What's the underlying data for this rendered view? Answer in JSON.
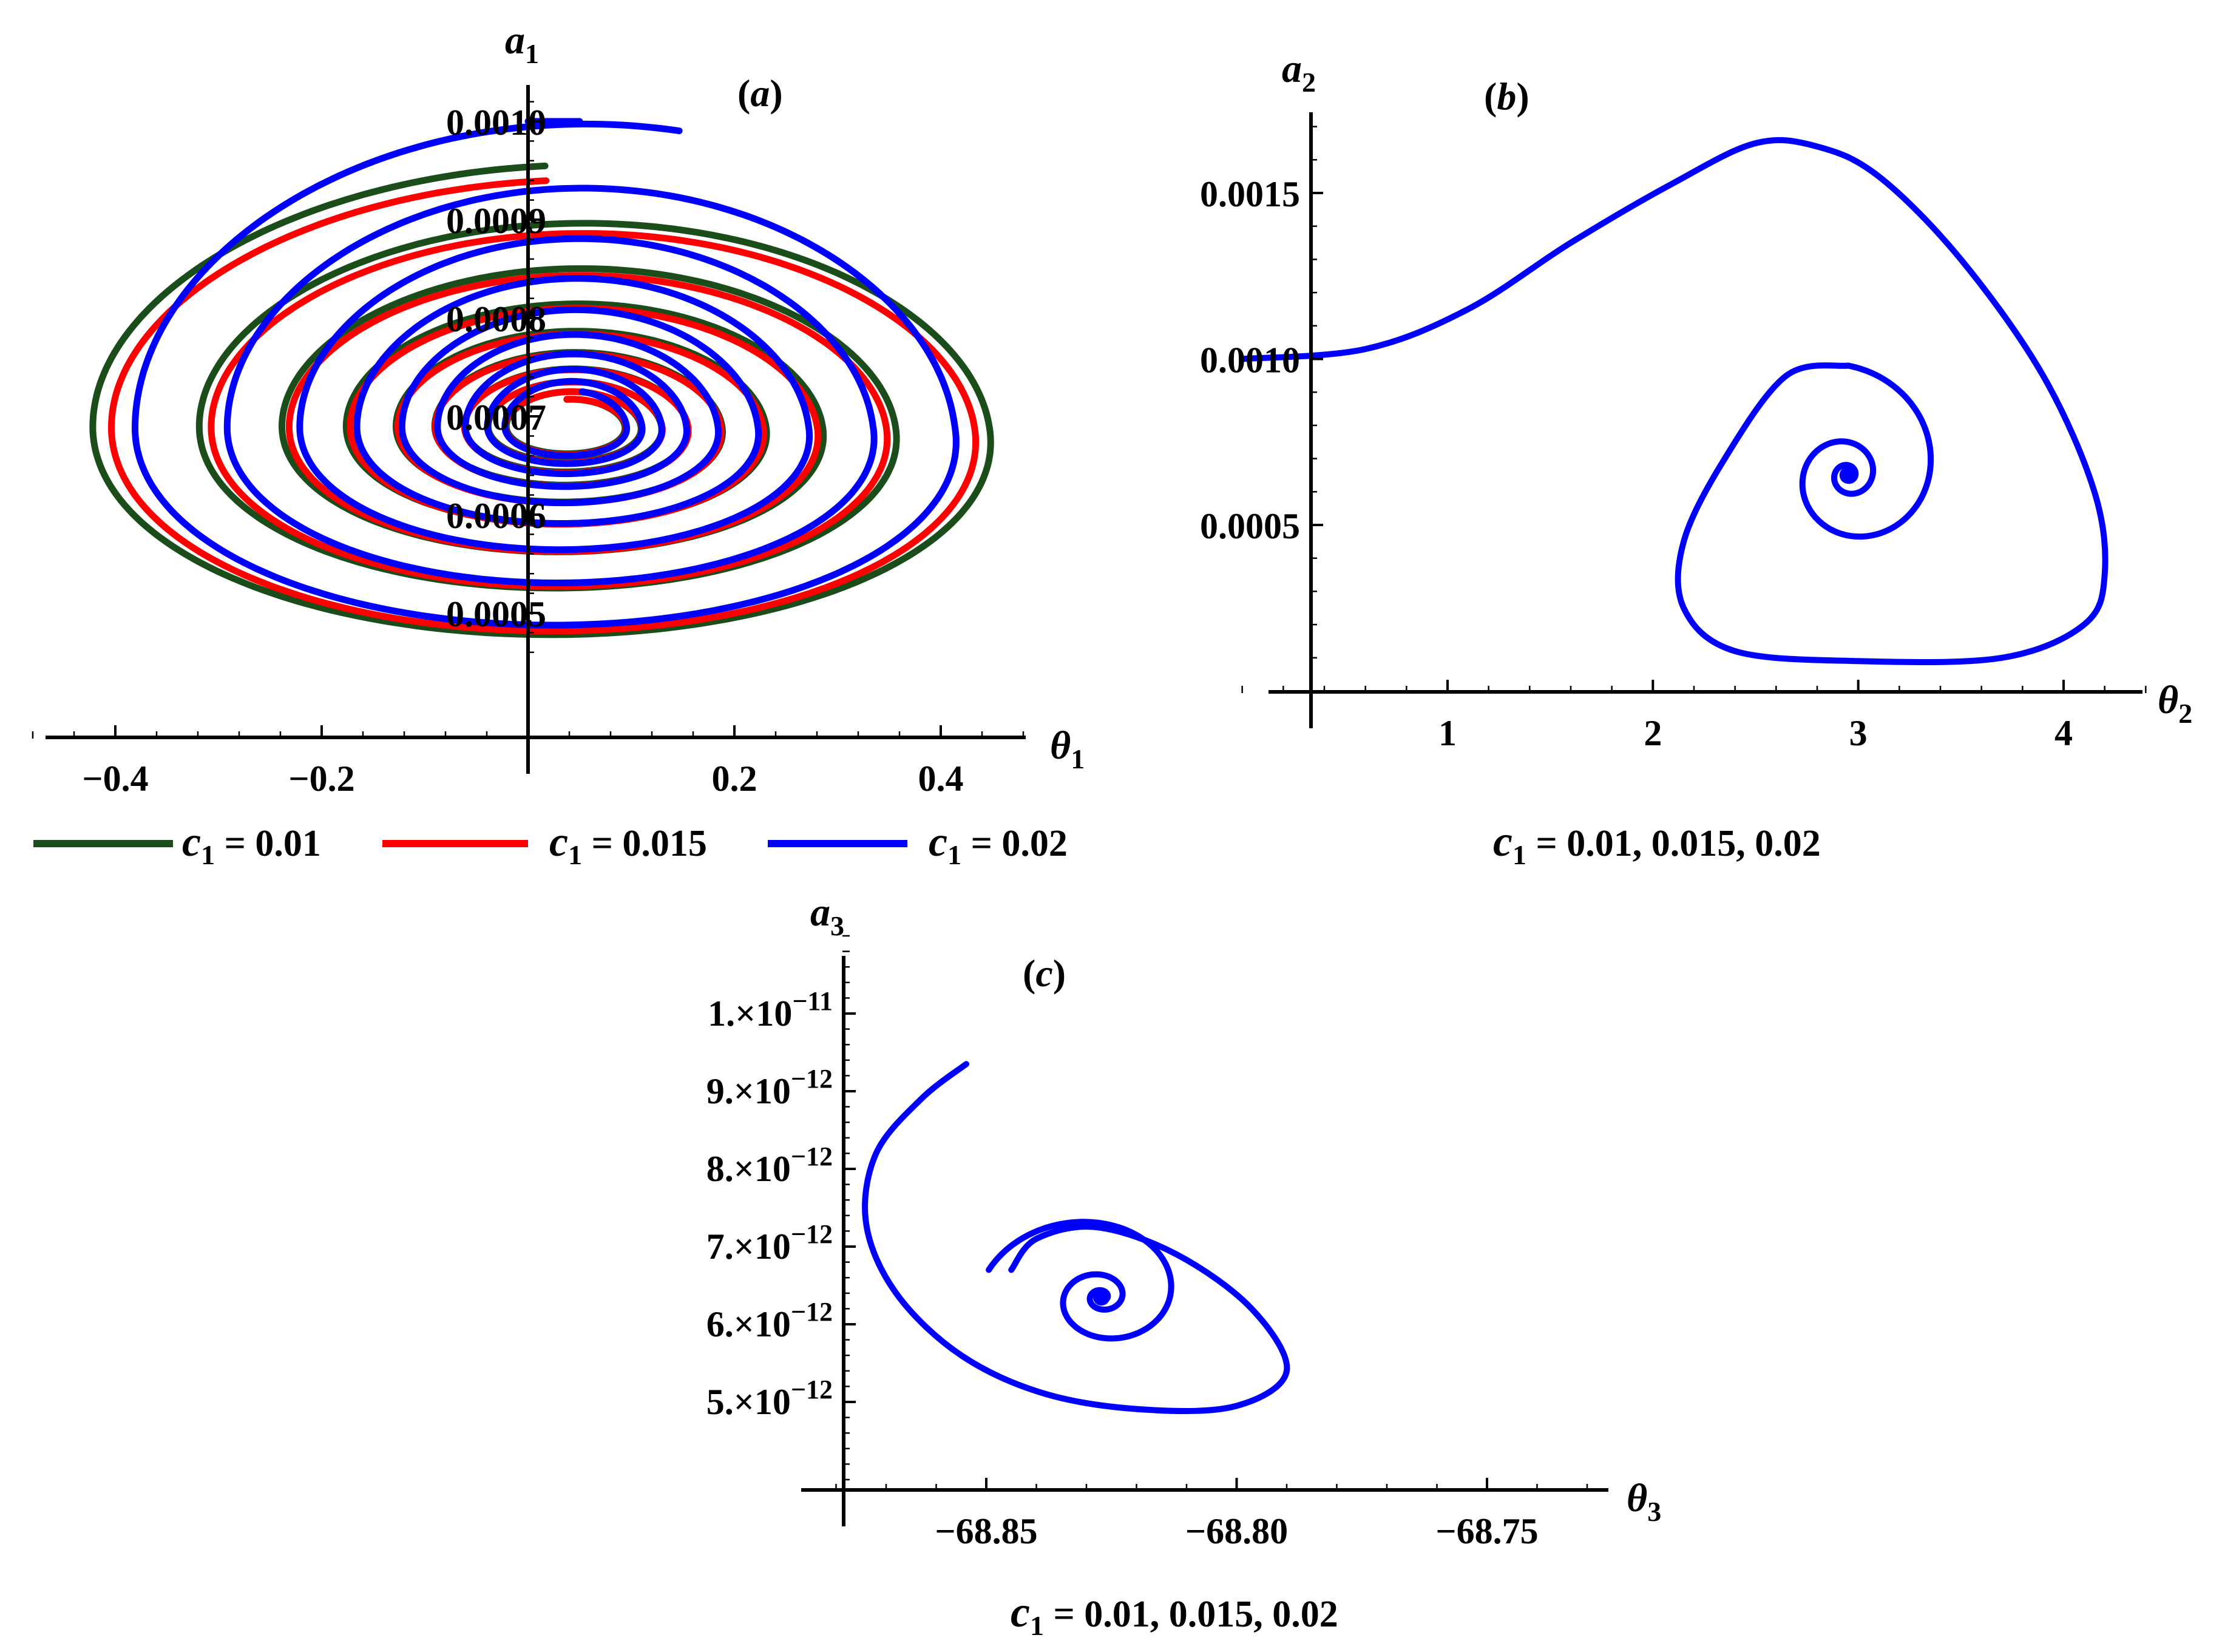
{
  "colors": {
    "green": "#1b4d1b",
    "red": "#ff0000",
    "blue": "#0000ff",
    "axis": "#000000"
  },
  "chart_data": [
    {
      "type": "line",
      "panel": "(a)",
      "panel_letter": "a",
      "xlabel": "θ",
      "xlabel_sub": "1",
      "ylabel": "a",
      "ylabel_sub": "1",
      "xlim": [
        -0.5,
        0.5
      ],
      "ylim": [
        0.00044,
        0.00102
      ],
      "x_ticks": [
        -0.4,
        -0.2,
        0.2,
        0.4
      ],
      "x_tick_labels": [
        "−0.4",
        "−0.2",
        "0.2",
        "0.4"
      ],
      "y_ticks": [
        0.0005,
        0.0006,
        0.0007,
        0.0008,
        0.0009,
        0.001
      ],
      "y_tick_labels": [
        "0.0005",
        "0.0006",
        "0.0007",
        "0.0008",
        "0.0009",
        "0.0010"
      ],
      "legend_position": "bottom",
      "series": [
        {
          "name": "c₁ = 0.01",
          "color": "#1b4d1b",
          "spiral": {
            "center": [
              0.04,
              0.00069
            ],
            "start": [
              0.0,
              0.000955
            ],
            "turns": 9,
            "decay": 0.035,
            "rx": 0.47,
            "ry_up": 0.000265,
            "ry_down": 0.00024,
            "skew": 0.07
          }
        },
        {
          "name": "c₁ = 0.015",
          "color": "#ff0000",
          "spiral": {
            "center": [
              0.04,
              0.00069
            ],
            "start": [
              0.0,
              0.00094
            ],
            "turns": 9,
            "decay": 0.034,
            "rx": 0.45,
            "ry_up": 0.00025,
            "ry_down": 0.000235,
            "skew": 0.07
          }
        },
        {
          "name": "c₁ = 0.02",
          "color": "#0000ff",
          "spiral": {
            "center": [
              0.04,
              0.00069
            ],
            "start": [
              0.05,
              0.001
            ],
            "turns": 9,
            "decay": 0.033,
            "rx": 0.43,
            "ry_up": 0.00031,
            "ry_down": 0.00023,
            "skew": 0.07
          }
        }
      ],
      "legend": [
        {
          "label_c": "c",
          "label_sub": "1",
          "label_rest": " = 0.01",
          "color": "#1b4d1b"
        },
        {
          "label_c": "c",
          "label_sub": "1",
          "label_rest": " = 0.015",
          "color": "#ff0000"
        },
        {
          "label_c": "c",
          "label_sub": "1",
          "label_rest": " = 0.02",
          "color": "#0000ff"
        }
      ]
    },
    {
      "type": "line",
      "panel": "(b)",
      "panel_letter": "b",
      "xlabel": "θ",
      "xlabel_sub": "2",
      "ylabel": "a",
      "ylabel_sub": "2",
      "xlim": [
        0.0,
        4.5
      ],
      "ylim": [
        0.0,
        0.0017
      ],
      "x_ticks": [
        1,
        2,
        3,
        4
      ],
      "x_tick_labels": [
        "1",
        "2",
        "3",
        "4"
      ],
      "y_ticks": [
        0.0005,
        0.001,
        0.0015
      ],
      "y_tick_labels": [
        "0.0005",
        "0.0010",
        "0.0015"
      ],
      "caption_c": "c",
      "caption_sub": "1",
      "caption_rest": " = 0.01, 0.015, 0.02",
      "series": [
        {
          "name": "trajectory",
          "color": "#0000ff",
          "center": [
            2.95,
            0.00065
          ],
          "path": [
            [
              0.0,
              0.001
            ],
            [
              0.6,
              0.00103
            ],
            [
              1.1,
              0.00115
            ],
            [
              1.6,
              0.00135
            ],
            [
              2.1,
              0.00153
            ],
            [
              2.5,
              0.00165
            ],
            [
              2.8,
              0.00164
            ],
            [
              3.1,
              0.00155
            ],
            [
              3.5,
              0.0013
            ],
            [
              3.9,
              0.00095
            ],
            [
              4.15,
              0.0006
            ],
            [
              4.2,
              0.00035
            ],
            [
              4.1,
              0.0002
            ],
            [
              3.7,
              0.0001
            ],
            [
              3.0,
              9e-05
            ],
            [
              2.4,
              0.00012
            ],
            [
              2.15,
              0.00025
            ],
            [
              2.15,
              0.00045
            ],
            [
              2.35,
              0.0007
            ],
            [
              2.65,
              0.00095
            ],
            [
              2.95,
              0.00098
            ]
          ]
        }
      ]
    },
    {
      "type": "line",
      "panel": "(c)",
      "panel_letter": "c",
      "xlabel": "θ",
      "xlabel_sub": "3",
      "ylabel": "a",
      "ylabel_sub": "3",
      "xlim": [
        -68.88,
        -68.72
      ],
      "ylim": [
        4e-12,
        1.1e-11
      ],
      "x_ticks": [
        -68.85,
        -68.8,
        -68.75
      ],
      "x_tick_labels": [
        "−68.85",
        "−68.80",
        "−68.75"
      ],
      "y_ticks": [
        5e-12,
        6e-12,
        7e-12,
        8e-12,
        9e-12,
        1e-11
      ],
      "y_tick_mantissa": [
        "5.",
        "6.",
        "7.",
        "8.",
        "9.",
        "1."
      ],
      "y_tick_exponent": [
        "−12",
        "−12",
        "−12",
        "−12",
        "−12",
        "−11"
      ],
      "y_tick_times": "×10",
      "caption_c": "c",
      "caption_sub": "1",
      "caption_rest": " = 0.01, 0.015, 0.02",
      "series": [
        {
          "name": "trajectory",
          "color": "#0000ff",
          "center": [
            -68.827,
            6.35e-12
          ],
          "path": [
            [
              -68.854,
              9.35e-12
            ],
            [
              -68.863,
              8.9e-12
            ],
            [
              -68.872,
              8.2e-12
            ],
            [
              -68.874,
              7.3e-12
            ],
            [
              -68.868,
              6.4e-12
            ],
            [
              -68.855,
              5.6e-12
            ],
            [
              -68.838,
              5.1e-12
            ],
            [
              -68.818,
              4.9e-12
            ],
            [
              -68.8,
              4.95e-12
            ],
            [
              -68.79,
              5.4e-12
            ],
            [
              -68.797,
              6.2e-12
            ],
            [
              -68.812,
              6.9e-12
            ],
            [
              -68.828,
              7.25e-12
            ],
            [
              -68.84,
              7.1e-12
            ],
            [
              -68.845,
              6.7e-12
            ]
          ]
        }
      ]
    }
  ]
}
